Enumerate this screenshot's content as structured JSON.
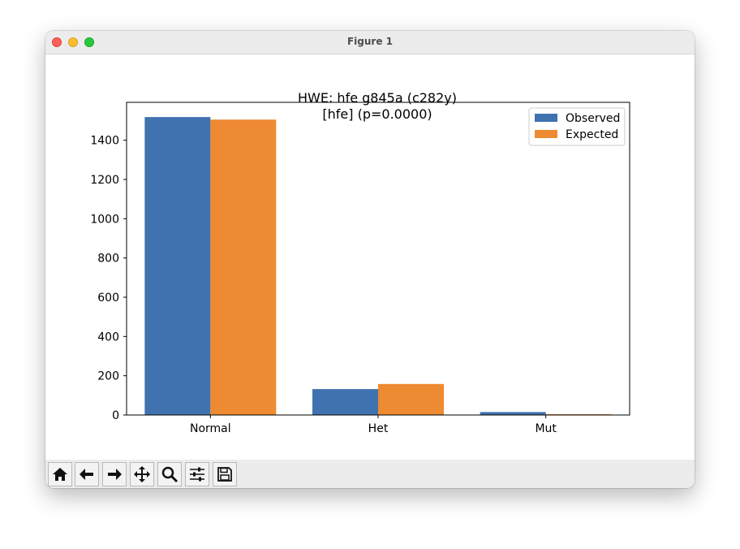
{
  "window": {
    "title": "Figure 1"
  },
  "chart_data": {
    "type": "bar",
    "title_line1": "HWE: hfe g845a (c282y)",
    "title_line2": "[hfe] (p=0.0000)",
    "categories": [
      "Normal",
      "Het",
      "Mut"
    ],
    "series": [
      {
        "name": "Observed",
        "color": "#3f72af",
        "values": [
          1518,
          132,
          15
        ]
      },
      {
        "name": "Expected",
        "color": "#ee8a32",
        "values": [
          1505,
          158,
          4
        ]
      }
    ],
    "yticks": [
      0,
      200,
      400,
      600,
      800,
      1000,
      1200,
      1400
    ],
    "ylim": [
      0,
      1593
    ],
    "legend_position": "upper-right",
    "xlabel": "",
    "ylabel": ""
  },
  "toolbar": {
    "buttons": [
      {
        "name": "home-icon",
        "icon": "home"
      },
      {
        "name": "back-icon",
        "icon": "arrow-left"
      },
      {
        "name": "forward-icon",
        "icon": "arrow-right"
      },
      {
        "name": "pan-icon",
        "icon": "move"
      },
      {
        "name": "zoom-icon",
        "icon": "magnifier"
      },
      {
        "name": "configure-subplots-icon",
        "icon": "sliders"
      },
      {
        "name": "save-icon",
        "icon": "floppy"
      }
    ]
  }
}
